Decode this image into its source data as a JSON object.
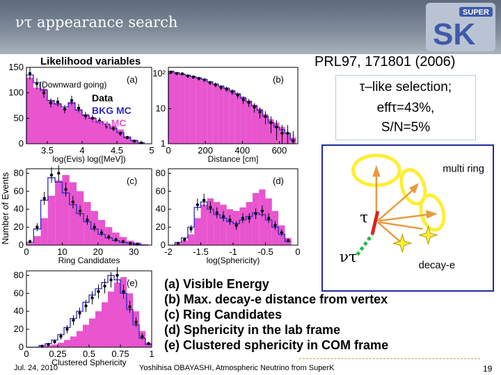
{
  "header": {
    "title": "ντ appearance search",
    "logo_text": "SUPER",
    "logo_letters": "SK"
  },
  "likelihood_title": "Likelihood variables",
  "reference": "PRL97, 171801 (2006)",
  "selection": {
    "line1": "τ–like selection;",
    "line2": "effτ=43%,",
    "line3": "S/N=5%"
  },
  "plot_legend": {
    "downward": "(Downward going)",
    "data": "Data",
    "bkg": "BKG MC",
    "tau": "Tau MC"
  },
  "y_axis_label": "Number of Events",
  "colors": {
    "tau_mc_fill": "#e855cf",
    "bkg_line": "#2a2ac0",
    "data_marker": "#000000",
    "diagram_border": "#1f2c9a",
    "ring_yellow": "#ffee33",
    "arrow_orange": "#e89a3c",
    "tau_track": "#dd2222",
    "nu_track": "#22bb44"
  },
  "chart_data": [
    {
      "type": "bar",
      "panel": "(a)",
      "xlabel": "log(Evis) log([MeV])",
      "xticks": [
        "3.5",
        "4",
        "4.5",
        "5"
      ],
      "xlim": [
        3.2,
        5.0
      ],
      "yticks": [
        "0",
        "50",
        "100",
        "150"
      ],
      "ylim": [
        0,
        150
      ],
      "x": [
        3.25,
        3.35,
        3.45,
        3.55,
        3.65,
        3.75,
        3.85,
        3.95,
        4.05,
        4.15,
        4.25,
        4.35,
        4.45,
        4.55,
        4.65,
        4.75,
        4.85
      ],
      "tau_mc": [
        130,
        110,
        108,
        85,
        80,
        70,
        82,
        68,
        58,
        52,
        45,
        40,
        35,
        28,
        15,
        8,
        3
      ],
      "bkg_mc": [
        135,
        120,
        105,
        85,
        78,
        72,
        80,
        66,
        56,
        50,
        42,
        38,
        30,
        22,
        12,
        6,
        2
      ],
      "data": [
        138,
        118,
        100,
        80,
        82,
        68,
        85,
        70,
        55,
        50,
        45,
        35,
        30,
        20,
        12,
        5,
        2
      ]
    },
    {
      "type": "bar",
      "panel": "(b)",
      "xlabel": "Distance [cm]",
      "xticks": [
        "0",
        "200",
        "400",
        "600"
      ],
      "xlim": [
        0,
        700
      ],
      "yticks": [
        "1",
        "10",
        "10²"
      ],
      "ylim": [
        1,
        150
      ],
      "log_y": true,
      "x": [
        15,
        45,
        75,
        105,
        135,
        165,
        195,
        225,
        255,
        285,
        315,
        345,
        375,
        405,
        435,
        465,
        495,
        525,
        555,
        585,
        615,
        645,
        675
      ],
      "tau_mc": [
        120,
        110,
        100,
        92,
        85,
        78,
        70,
        60,
        52,
        45,
        40,
        34,
        28,
        22,
        17,
        13,
        10,
        7,
        5,
        4,
        3,
        2,
        1.5
      ],
      "bkg_mc": [
        115,
        105,
        96,
        90,
        82,
        75,
        68,
        58,
        50,
        44,
        38,
        32,
        26,
        20,
        16,
        12,
        9,
        6,
        4,
        3,
        2.5,
        2,
        1.3
      ],
      "data": [
        110,
        100,
        98,
        85,
        80,
        72,
        66,
        55,
        48,
        40,
        36,
        30,
        24,
        18,
        15,
        11,
        8,
        6,
        4,
        3,
        2,
        2,
        1.2
      ]
    },
    {
      "type": "bar",
      "panel": "(c)",
      "xlabel": "Ring Candidates",
      "xticks": [
        "0",
        "10",
        "20",
        "30"
      ],
      "xlim": [
        0,
        35
      ],
      "yticks": [
        "0",
        "20",
        "40",
        "60",
        "80"
      ],
      "ylim": [
        0,
        85
      ],
      "x": [
        1,
        3,
        5,
        7,
        9,
        11,
        13,
        15,
        17,
        19,
        21,
        23,
        25,
        27,
        29,
        31,
        33
      ],
      "tau_mc": [
        2,
        10,
        30,
        55,
        72,
        78,
        70,
        60,
        48,
        38,
        28,
        20,
        14,
        9,
        5,
        3,
        1
      ],
      "bkg_mc": [
        3,
        18,
        50,
        75,
        70,
        58,
        45,
        35,
        26,
        18,
        12,
        8,
        5,
        3,
        2,
        1,
        0
      ],
      "data": [
        4,
        20,
        52,
        78,
        80,
        62,
        48,
        38,
        28,
        20,
        14,
        9,
        6,
        4,
        2,
        1,
        0
      ]
    },
    {
      "type": "bar",
      "panel": "(d)",
      "xlabel": "log(Sphericity)",
      "xticks": [
        "-2",
        "-1.5",
        "-1",
        "-0.5",
        "0"
      ],
      "xlim": [
        -2,
        0
      ],
      "yticks": [
        "0",
        "20",
        "40",
        "60",
        "80"
      ],
      "ylim": [
        0,
        85
      ],
      "x": [
        -1.95,
        -1.85,
        -1.75,
        -1.65,
        -1.55,
        -1.45,
        -1.35,
        -1.25,
        -1.15,
        -1.05,
        -0.95,
        -0.85,
        -0.75,
        -0.65,
        -0.55,
        -0.45,
        -0.35,
        -0.25,
        -0.15
      ],
      "tau_mc": [
        0,
        2,
        5,
        12,
        30,
        45,
        52,
        48,
        45,
        40,
        38,
        42,
        48,
        58,
        62,
        52,
        38,
        22,
        8
      ],
      "bkg_mc": [
        0,
        3,
        8,
        20,
        42,
        48,
        40,
        34,
        30,
        26,
        24,
        28,
        32,
        36,
        34,
        28,
        20,
        12,
        4
      ],
      "data": [
        0,
        2,
        6,
        18,
        45,
        50,
        42,
        36,
        32,
        28,
        22,
        30,
        30,
        35,
        38,
        30,
        22,
        14,
        5
      ]
    },
    {
      "type": "bar",
      "panel": "(e)",
      "xlabel": "Clustered Sphericity",
      "xticks": [
        "0",
        "0.25",
        "0.5",
        "0.75",
        "1"
      ],
      "xlim": [
        0,
        1
      ],
      "yticks": [
        "0",
        "20",
        "40",
        "60",
        "80"
      ],
      "ylim": [
        0,
        85
      ],
      "x": [
        0.025,
        0.075,
        0.125,
        0.175,
        0.225,
        0.275,
        0.325,
        0.375,
        0.425,
        0.475,
        0.525,
        0.575,
        0.625,
        0.675,
        0.725,
        0.775,
        0.825,
        0.875,
        0.925,
        0.975
      ],
      "tau_mc": [
        0,
        0,
        1,
        2,
        3,
        5,
        8,
        12,
        18,
        25,
        32,
        40,
        50,
        62,
        72,
        78,
        60,
        40,
        18,
        5
      ],
      "bkg_mc": [
        0,
        0,
        2,
        4,
        8,
        14,
        22,
        32,
        40,
        50,
        58,
        65,
        72,
        80,
        75,
        60,
        42,
        25,
        10,
        3
      ],
      "data": [
        0,
        0,
        1,
        3,
        6,
        12,
        20,
        30,
        38,
        46,
        55,
        62,
        68,
        75,
        80,
        62,
        45,
        28,
        12,
        4
      ]
    }
  ],
  "diagram": {
    "multi_ring": "multi ring",
    "tau_label": "τ",
    "nu_label": "ντ",
    "decay_e": "decay-e"
  },
  "definitions": [
    "(a) Visible Energy",
    "(b) Max. decay-e distance from vertex",
    "(c) Ring Candidates",
    "(d) Sphericity in the lab frame",
    "(e) Clustered sphericity in COM frame"
  ],
  "footer": {
    "date": "Jul. 24, 2010",
    "author": "Yoshihisa OBAYASHI, Atmospheric Neutrino from SuperK",
    "page": "19"
  }
}
